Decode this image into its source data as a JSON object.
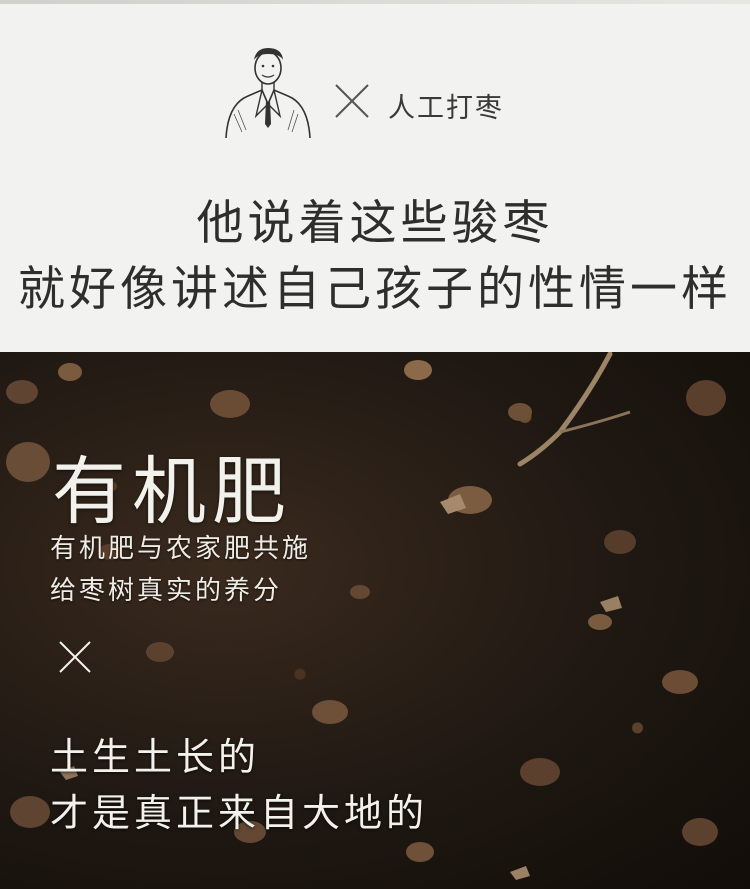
{
  "header": {
    "tag_text": "人工打枣",
    "headline_line1": "他说着这些骏枣",
    "headline_line2": "就好像讲述自己孩子的性情一样"
  },
  "soil_section": {
    "title": "有机肥",
    "subtitle_line1": "有机肥与农家肥共施",
    "subtitle_line2": "给枣树真实的养分",
    "phrase_line1": "土生土长的",
    "phrase_line2": "才是真正来自大地的"
  },
  "icons": {
    "man": "man-in-suit-illustration-icon",
    "cross": "cross-icon"
  },
  "colors": {
    "top_background": "#f2f2f0",
    "headline_text": "#2e2e2e",
    "soil_text": "#f3f1ec"
  }
}
